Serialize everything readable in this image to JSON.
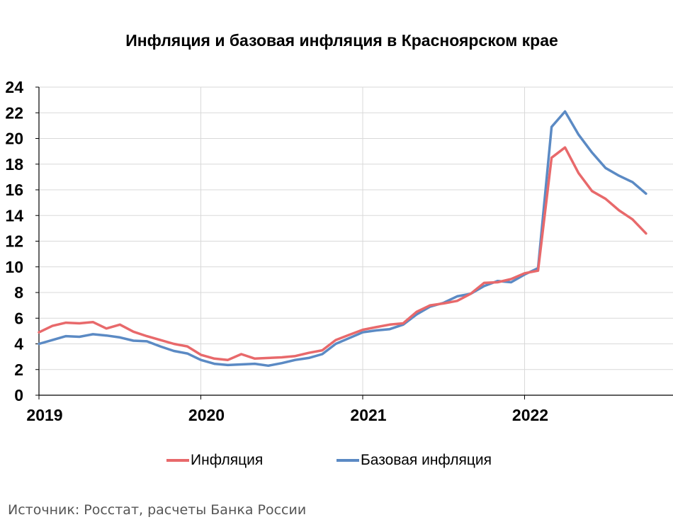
{
  "chart_data": {
    "type": "line",
    "title": "Инфляция и базовая инфляция в Красноярском крае",
    "xlabel": "",
    "ylabel": "",
    "ylim": [
      0,
      24
    ],
    "yticks": [
      "0",
      "2",
      "4",
      "6",
      "8",
      "10",
      "12",
      "14",
      "16",
      "18",
      "20",
      "22",
      "24"
    ],
    "xticks": [
      "2019",
      "2020",
      "2021",
      "2022"
    ],
    "grid": true,
    "legend_position": "bottom",
    "x": [
      "2019-01",
      "2019-02",
      "2019-03",
      "2019-04",
      "2019-05",
      "2019-06",
      "2019-07",
      "2019-08",
      "2019-09",
      "2019-10",
      "2019-11",
      "2019-12",
      "2020-01",
      "2020-02",
      "2020-03",
      "2020-04",
      "2020-05",
      "2020-06",
      "2020-07",
      "2020-08",
      "2020-09",
      "2020-10",
      "2020-11",
      "2020-12",
      "2021-01",
      "2021-02",
      "2021-03",
      "2021-04",
      "2021-05",
      "2021-06",
      "2021-07",
      "2021-08",
      "2021-09",
      "2021-10",
      "2021-11",
      "2021-12",
      "2022-01",
      "2022-02",
      "2022-03",
      "2022-04",
      "2022-05",
      "2022-06",
      "2022-07",
      "2022-08",
      "2022-09",
      "2022-10"
    ],
    "series": [
      {
        "name": "Инфляция",
        "color": "#e8696b",
        "values": [
          4.9,
          5.4,
          5.65,
          5.6,
          5.7,
          5.2,
          5.5,
          4.95,
          4.6,
          4.3,
          4.0,
          3.8,
          3.15,
          2.85,
          2.75,
          3.2,
          2.85,
          2.9,
          2.95,
          3.05,
          3.3,
          3.5,
          4.3,
          4.7,
          5.1,
          5.3,
          5.5,
          5.6,
          6.5,
          7.0,
          7.15,
          7.35,
          7.9,
          8.75,
          8.8,
          9.05,
          9.5,
          9.7,
          18.5,
          19.3,
          17.3,
          15.9,
          15.3,
          14.4,
          13.7,
          12.6
        ]
      },
      {
        "name": "Базовая инфляция",
        "color": "#5b8ac4",
        "values": [
          4.0,
          4.3,
          4.6,
          4.55,
          4.75,
          4.65,
          4.5,
          4.25,
          4.2,
          3.8,
          3.45,
          3.25,
          2.75,
          2.45,
          2.35,
          2.4,
          2.45,
          2.3,
          2.5,
          2.75,
          2.9,
          3.2,
          4.0,
          4.45,
          4.9,
          5.05,
          5.15,
          5.5,
          6.3,
          6.9,
          7.2,
          7.7,
          7.9,
          8.5,
          8.9,
          8.8,
          9.4,
          9.9,
          20.9,
          22.1,
          20.3,
          18.9,
          17.7,
          17.1,
          16.6,
          15.7
        ]
      }
    ]
  },
  "source_note": "Источник: Росстат, расчеты Банка России"
}
